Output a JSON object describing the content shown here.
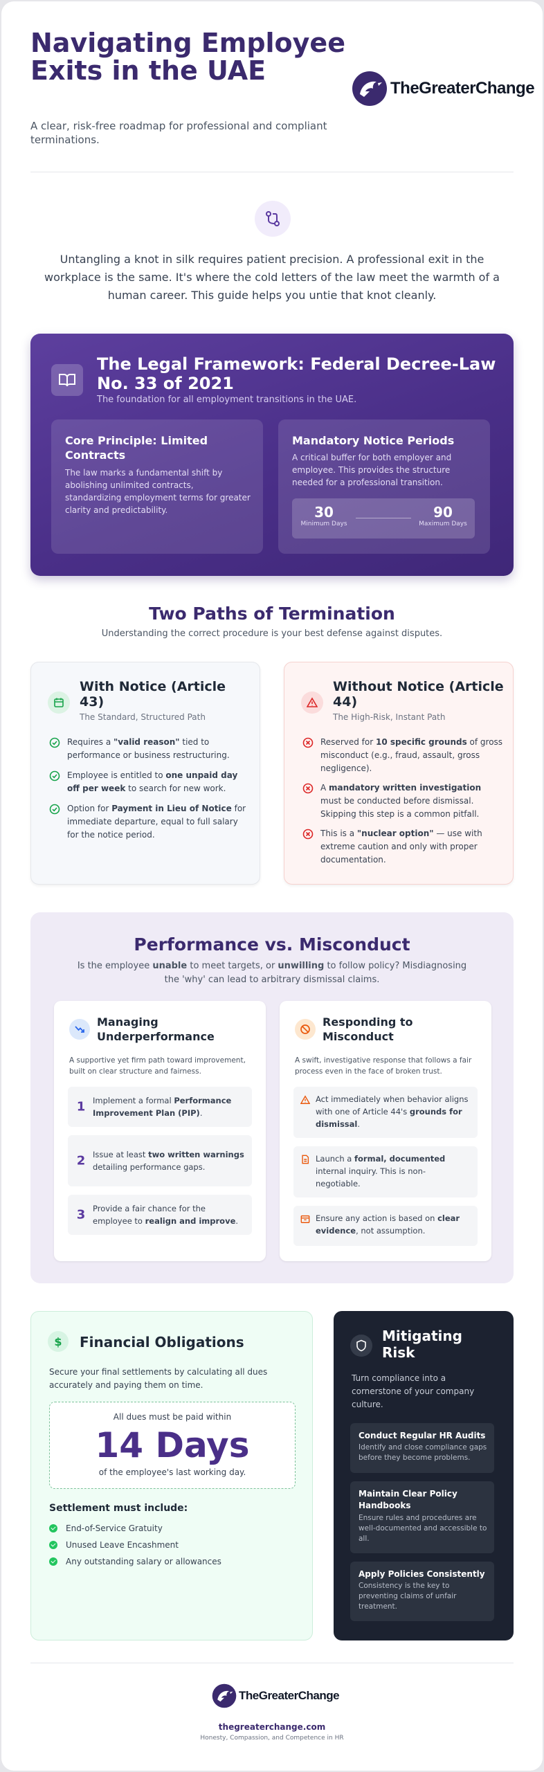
{
  "header": {
    "title": "Navigating Employee Exits in the UAE",
    "subtitle": "A clear, risk-free roadmap for professional and compliant terminations.",
    "logo_text": "TheGreaterChange"
  },
  "intro": {
    "icon": "git-branch-icon",
    "text": "Untangling a knot in silk requires patient precision. A professional exit in the workplace is the same. It's where the cold letters of the law meet the warmth of a human career. This guide helps you untie that knot cleanly."
  },
  "legal": {
    "icon": "book-open-icon",
    "title": "The Legal Framework: Federal Decree-Law No. 33 of 2021",
    "subtitle": "The foundation for all employment transitions in the UAE.",
    "core": {
      "title": "Core Principle: Limited Contracts",
      "text": "The law marks a fundamental shift by abolishing unlimited contracts, standardizing employment terms for greater clarity and predictability."
    },
    "notice": {
      "title": "Mandatory Notice Periods",
      "text": "A critical buffer for both employer and employee. This provides the structure needed for a professional transition.",
      "min_value": "30",
      "min_label": "Minimum Days",
      "max_value": "90",
      "max_label": "Maximum Days"
    }
  },
  "paths": {
    "title": "Two Paths of Termination",
    "subtitle": "Understanding the correct procedure is your best defense against disputes.",
    "with_notice": {
      "icon": "calendar-icon",
      "title": "With Notice (Article 43)",
      "subtitle": "The Standard, Structured Path",
      "items": [
        {
          "pre": "Requires a ",
          "bold": "\"valid reason\"",
          "post": " tied to performance or business restructuring."
        },
        {
          "pre": "Employee is entitled to ",
          "bold": "one unpaid day off per week",
          "post": " to search for new work."
        },
        {
          "pre": "Option for ",
          "bold": "Payment in Lieu of Notice",
          "post": " for immediate departure, equal to full salary for the notice period."
        }
      ]
    },
    "without_notice": {
      "icon": "warning-triangle-icon",
      "title": "Without Notice (Article 44)",
      "subtitle": "The High-Risk, Instant Path",
      "items": [
        {
          "pre": "Reserved for ",
          "bold": "10 specific grounds",
          "post": " of gross misconduct (e.g., fraud, assault, gross negligence)."
        },
        {
          "pre": "A ",
          "bold": "mandatory written investigation",
          "post": " must be conducted before dismissal. Skipping this step is a common pitfall."
        },
        {
          "pre": "This is a ",
          "bold": "\"nuclear option\"",
          "post": " — use with extreme caution and only with proper documentation."
        }
      ]
    }
  },
  "perf_misc": {
    "title": "Performance vs. Misconduct",
    "intro": {
      "a": "Is the employee ",
      "b": "unable",
      "c": " to meet targets, or ",
      "d": "unwilling",
      "e": " to follow policy? Misdiagnosing the 'why' can lead to arbitrary dismissal claims."
    },
    "perf": {
      "icon": "trending-down-icon",
      "title": "Managing Underperformance",
      "desc": "A supportive yet firm path toward improvement, built on clear structure and fairness.",
      "steps": [
        {
          "num": "1",
          "pre": "Implement a formal ",
          "bold": "Performance Improvement Plan (PIP)",
          "post": "."
        },
        {
          "num": "2",
          "pre": "Issue at least ",
          "bold": "two written warnings",
          "post": " detailing performance gaps."
        },
        {
          "num": "3",
          "pre": "Provide a fair chance for the employee to ",
          "bold": "realign and improve",
          "post": "."
        }
      ]
    },
    "misc": {
      "icon": "ban-icon",
      "title": "Responding to Misconduct",
      "desc": "A swift, investigative response that follows a fair process even in the face of broken trust.",
      "items": [
        {
          "icon": "alert-triangle-icon",
          "pre": "Act immediately when behavior aligns with one of Article 44's ",
          "bold": "grounds for dismissal",
          "post": "."
        },
        {
          "icon": "document-icon",
          "pre": "Launch a ",
          "bold": "formal, documented",
          "post": " internal inquiry. This is non-negotiable."
        },
        {
          "icon": "archive-icon",
          "pre": "Ensure any action is based on ",
          "bold": "clear evidence",
          "post": ", not assumption."
        }
      ]
    }
  },
  "finance": {
    "icon": "dollar-icon",
    "icon_glyph": "$",
    "title": "Financial Obligations",
    "desc": "Secure your final settlements by calculating all dues accurately and paying them on time.",
    "due_top": "All dues must be paid within",
    "due_big": "14 Days",
    "due_bottom": "of the employee's last working day.",
    "settle_title": "Settlement must include:",
    "settle_items": [
      "End-of-Service Gratuity",
      "Unused Leave Encashment",
      "Any outstanding salary or allowances"
    ]
  },
  "risk": {
    "icon": "shield-icon",
    "title": "Mitigating Risk",
    "desc": "Turn compliance into a cornerstone of your company culture.",
    "items": [
      {
        "title": "Conduct Regular HR Audits",
        "text": "Identify and close compliance gaps before they become problems."
      },
      {
        "title": "Maintain Clear Policy Handbooks",
        "text": "Ensure rules and procedures are well-documented and accessible to all."
      },
      {
        "title": "Apply Policies Consistently",
        "text": "Consistency is the key to preventing claims of unfair treatment."
      }
    ]
  },
  "footer": {
    "logo_text": "TheGreaterChange",
    "url": "thegreaterchange.com",
    "tagline": "Honesty, Compassion, and Competence in HR"
  },
  "colors": {
    "brand_purple": "#3b2a6e",
    "accent_purple": "#4a2f88",
    "green": "#22c55e",
    "red": "#dc2626",
    "dark": "#1c2230"
  }
}
